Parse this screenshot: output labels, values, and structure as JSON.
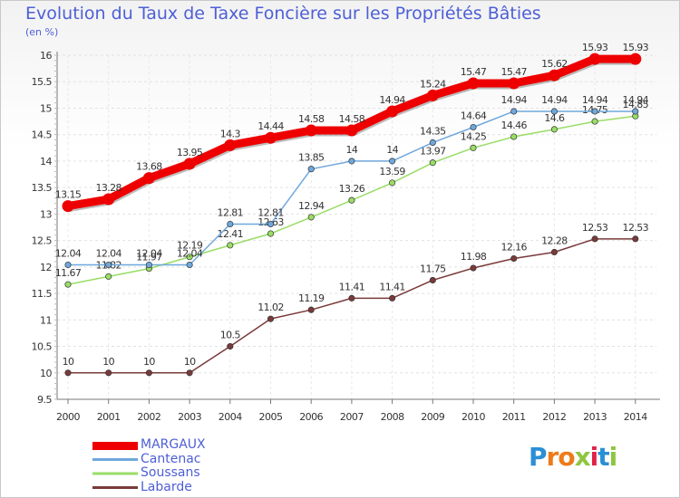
{
  "chart_data": {
    "type": "line",
    "title": "Evolution du Taux de Taxe Foncière sur les Propriétés Bâties",
    "ylabel": "(en %)",
    "categories": [
      "2000",
      "2001",
      "2002",
      "2003",
      "2004",
      "2005",
      "2006",
      "2007",
      "2008",
      "2009",
      "2010",
      "2011",
      "2012",
      "2013",
      "2014"
    ],
    "ylim": [
      9.5,
      16
    ],
    "yticks": [
      "9.5",
      "10",
      "10.5",
      "11",
      "11.5",
      "12",
      "12.5",
      "13",
      "13.5",
      "14",
      "14.5",
      "15",
      "15.5",
      "16"
    ],
    "series": [
      {
        "name": "MARGAUX",
        "color": "#ee0000",
        "values": [
          13.15,
          13.28,
          13.68,
          13.95,
          14.3,
          14.44,
          14.58,
          14.58,
          14.94,
          15.24,
          15.47,
          15.47,
          15.62,
          15.93,
          15.93
        ],
        "labels": [
          "13.15",
          "13.28",
          "13.68",
          "13.95",
          "14.3",
          "14.44",
          "14.58",
          "14.58",
          "14.94",
          "15.24",
          "15.47",
          "15.47",
          "15.62",
          "15.93",
          "15.93"
        ]
      },
      {
        "name": "Cantenac",
        "color": "#6fa8dc",
        "values": [
          12.04,
          12.04,
          12.04,
          12.04,
          12.81,
          12.81,
          13.85,
          14,
          14,
          14.35,
          14.64,
          14.94,
          14.94,
          14.94,
          14.94
        ],
        "labels": [
          "12.04",
          "12.04",
          "12.04",
          "12.04",
          "12.81",
          "12.81",
          "13.85",
          "14",
          "14",
          "14.35",
          "14.64",
          "14.94",
          "14.94",
          "14.94",
          "14.94"
        ]
      },
      {
        "name": "Soussans",
        "color": "#99dd66",
        "values": [
          11.67,
          11.82,
          11.97,
          12.19,
          12.41,
          12.63,
          12.94,
          13.26,
          13.59,
          13.97,
          14.25,
          14.46,
          14.6,
          14.75,
          14.85
        ],
        "labels": [
          "11.67",
          "11.82",
          "11.97",
          "12.19",
          "12.41",
          "12.63",
          "12.94",
          "13.26",
          "13.59",
          "13.97",
          "14.25",
          "14.46",
          "14.6",
          "14.75",
          "14.85"
        ]
      },
      {
        "name": "Labarde",
        "color": "#7a3a3a",
        "values": [
          10,
          10,
          10,
          10,
          10.5,
          11.02,
          11.19,
          11.41,
          11.41,
          11.75,
          11.98,
          12.16,
          12.28,
          12.53,
          12.53
        ],
        "labels": [
          "10",
          "10",
          "10",
          "10",
          "10.5",
          "11.02",
          "11.19",
          "11.41",
          "11.41",
          "11.75",
          "11.98",
          "12.16",
          "12.28",
          "12.53",
          "12.53"
        ]
      }
    ]
  },
  "logo": {
    "text": "Proxiti"
  }
}
